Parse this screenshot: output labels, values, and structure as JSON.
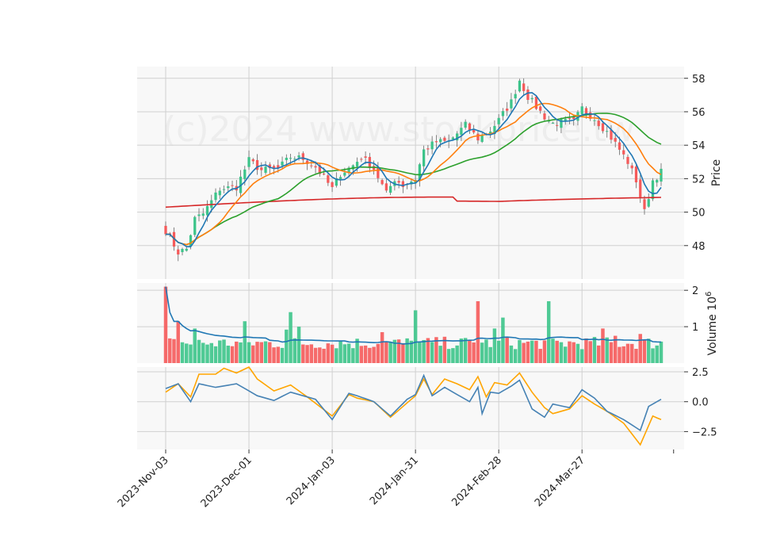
{
  "chart_data": {
    "type": "candlestick",
    "watermark": "(c)2024 www.stockprice.tw",
    "colors": {
      "up": "#3cc48a",
      "down": "#f55a5a",
      "ma_short": "#1f77b4",
      "ma_mid": "#ff7f0e",
      "ma_long": "#2ca02c",
      "ma_longest": "#d62728",
      "volume_ma": "#1f77b4",
      "osc_fast": "#4682b4",
      "osc_slow": "#ffa500",
      "panel_bg": "#f8f8f8",
      "grid": "#d0d0d0"
    },
    "x_tick_labels": [
      "2023-Nov-03",
      "2023-Dec-01",
      "2024-Jan-03",
      "2024-Jan-31",
      "2024-Feb-28",
      "2024-Mar-27"
    ],
    "x_tick_index": [
      0,
      20,
      40,
      60,
      80,
      100
    ],
    "n_bars": 120,
    "price_panel": {
      "ylabel": "Price",
      "ylim": [
        46.0,
        58.7
      ],
      "yticks": [
        48,
        50,
        52,
        54,
        56,
        58
      ],
      "anchors": [
        [
          0,
          48.9
        ],
        [
          3,
          47.6
        ],
        [
          5,
          47.8
        ],
        [
          7,
          49.6
        ],
        [
          9,
          49.9
        ],
        [
          13,
          51.4
        ],
        [
          17,
          51.5
        ],
        [
          20,
          53.1
        ],
        [
          23,
          52.5
        ],
        [
          27,
          52.6
        ],
        [
          30,
          53.3
        ],
        [
          33,
          53.2
        ],
        [
          36,
          52.7
        ],
        [
          40,
          51.4
        ],
        [
          42,
          52.3
        ],
        [
          45,
          52.8
        ],
        [
          47,
          53.3
        ],
        [
          50,
          52.6
        ],
        [
          53,
          51.1
        ],
        [
          55,
          52.0
        ],
        [
          57,
          51.6
        ],
        [
          60,
          52.0
        ],
        [
          62,
          53.7
        ],
        [
          65,
          54.2
        ],
        [
          68,
          54.2
        ],
        [
          72,
          55.2
        ],
        [
          75,
          54.4
        ],
        [
          78,
          54.9
        ],
        [
          80,
          55.5
        ],
        [
          83,
          56.6
        ],
        [
          85,
          57.9
        ],
        [
          87,
          56.9
        ],
        [
          89,
          56.3
        ],
        [
          91,
          55.7
        ],
        [
          93,
          55.3
        ],
        [
          95,
          55.4
        ],
        [
          98,
          55.4
        ],
        [
          100,
          56.2
        ],
        [
          103,
          55.6
        ],
        [
          106,
          54.8
        ],
        [
          108,
          54.1
        ],
        [
          111,
          53.0
        ],
        [
          113,
          51.9
        ],
        [
          115,
          50.0
        ],
        [
          117,
          51.9
        ],
        [
          119,
          52.4
        ]
      ]
    },
    "volume_panel": {
      "ylabel": "Volume  10",
      "ylabel_exp": "6",
      "ylim": [
        0,
        2.2
      ],
      "yticks": [
        1,
        2
      ],
      "base": 0.55,
      "spikes": [
        [
          0,
          2.1
        ],
        [
          3,
          1.15
        ],
        [
          7,
          0.95
        ],
        [
          19,
          1.15
        ],
        [
          29,
          0.92
        ],
        [
          30,
          1.4
        ],
        [
          32,
          1.0
        ],
        [
          52,
          0.85
        ],
        [
          60,
          1.45
        ],
        [
          75,
          1.7
        ],
        [
          79,
          0.95
        ],
        [
          81,
          1.25
        ],
        [
          92,
          1.7
        ],
        [
          105,
          0.95
        ],
        [
          108,
          0.75
        ],
        [
          114,
          0.8
        ]
      ]
    },
    "oscillator_panel": {
      "ylim": [
        -4.0,
        2.9
      ],
      "yticks": [
        2.5,
        0.0,
        -2.5
      ],
      "ytick_labels": [
        "2.5",
        "0.0",
        "−2.5"
      ],
      "fast_anchors": [
        [
          0,
          1.1
        ],
        [
          3,
          1.5
        ],
        [
          6,
          0.0
        ],
        [
          8,
          1.5
        ],
        [
          12,
          1.2
        ],
        [
          17,
          1.5
        ],
        [
          22,
          0.5
        ],
        [
          26,
          0.1
        ],
        [
          30,
          0.8
        ],
        [
          36,
          0.2
        ],
        [
          40,
          -1.5
        ],
        [
          44,
          0.7
        ],
        [
          46,
          0.5
        ],
        [
          50,
          0.0
        ],
        [
          54,
          -1.2
        ],
        [
          58,
          0.2
        ],
        [
          60,
          0.6
        ],
        [
          62,
          2.2
        ],
        [
          64,
          0.5
        ],
        [
          67,
          1.2
        ],
        [
          70,
          0.6
        ],
        [
          73,
          0.0
        ],
        [
          75,
          1.2
        ],
        [
          76,
          -1.0
        ],
        [
          78,
          0.8
        ],
        [
          80,
          0.7
        ],
        [
          83,
          1.3
        ],
        [
          85,
          1.8
        ],
        [
          88,
          -0.6
        ],
        [
          91,
          -1.3
        ],
        [
          93,
          -0.2
        ],
        [
          97,
          -0.5
        ],
        [
          100,
          1.0
        ],
        [
          103,
          0.3
        ],
        [
          106,
          -0.8
        ],
        [
          110,
          -1.5
        ],
        [
          114,
          -2.4
        ],
        [
          116,
          -0.4
        ],
        [
          119,
          0.2
        ]
      ],
      "slow_anchors": [
        [
          0,
          0.8
        ],
        [
          3,
          1.5
        ],
        [
          6,
          0.4
        ],
        [
          8,
          2.3
        ],
        [
          12,
          2.3
        ],
        [
          14,
          2.8
        ],
        [
          17,
          2.4
        ],
        [
          20,
          2.9
        ],
        [
          22,
          1.9
        ],
        [
          26,
          0.9
        ],
        [
          30,
          1.4
        ],
        [
          34,
          0.4
        ],
        [
          40,
          -1.2
        ],
        [
          44,
          0.6
        ],
        [
          46,
          0.3
        ],
        [
          50,
          0.0
        ],
        [
          54,
          -1.3
        ],
        [
          58,
          -0.1
        ],
        [
          60,
          0.5
        ],
        [
          62,
          1.9
        ],
        [
          64,
          0.6
        ],
        [
          67,
          1.9
        ],
        [
          70,
          1.5
        ],
        [
          73,
          1.0
        ],
        [
          75,
          2.1
        ],
        [
          77,
          0.4
        ],
        [
          79,
          1.6
        ],
        [
          82,
          1.4
        ],
        [
          85,
          2.4
        ],
        [
          88,
          0.8
        ],
        [
          91,
          -0.5
        ],
        [
          93,
          -1.0
        ],
        [
          97,
          -0.6
        ],
        [
          100,
          0.5
        ],
        [
          103,
          -0.2
        ],
        [
          106,
          -0.8
        ],
        [
          110,
          -1.8
        ],
        [
          114,
          -3.6
        ],
        [
          117,
          -1.2
        ],
        [
          119,
          -1.5
        ]
      ]
    }
  }
}
